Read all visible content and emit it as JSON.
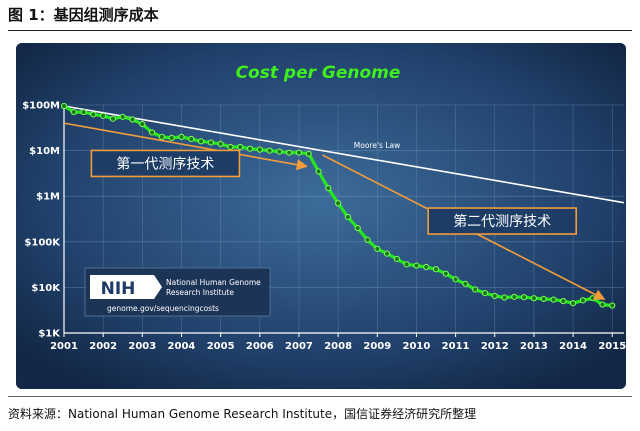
{
  "figure": {
    "title": "图 1：基因组测序成本",
    "source": "资料来源：National Human Genome Research Institute，国信证券经济研究所整理"
  },
  "logo": {
    "mark": "NIH",
    "name_line1": "National Human Genome",
    "name_line2": "Research Institute",
    "url": "genome.gov/sequencingcosts"
  },
  "chart_data": {
    "type": "line",
    "title": "Cost per Genome",
    "xlabel": "",
    "ylabel": "",
    "y_scale": "log",
    "ylim": [
      1000,
      100000000
    ],
    "xlim": [
      2001,
      2015.3
    ],
    "x_ticks": [
      "2001",
      "2002",
      "2003",
      "2004",
      "2005",
      "2006",
      "2007",
      "2008",
      "2009",
      "2010",
      "2011",
      "2012",
      "2013",
      "2014",
      "2015"
    ],
    "y_ticks": [
      {
        "value": 100000000,
        "label": "$100M"
      },
      {
        "value": 10000000,
        "label": "$10M"
      },
      {
        "value": 1000000,
        "label": "$1M"
      },
      {
        "value": 100000,
        "label": "$100K"
      },
      {
        "value": 10000,
        "label": "$10K"
      },
      {
        "value": 1000,
        "label": "$1K"
      }
    ],
    "grid": true,
    "series": [
      {
        "color": "#22e81c",
        "x": [
          2001.0,
          2001.25,
          2001.5,
          2001.75,
          2002.0,
          2002.25,
          2002.5,
          2002.75,
          2003.0,
          2003.25,
          2003.5,
          2003.75,
          2004.0,
          2004.25,
          2004.5,
          2004.75,
          2005.0,
          2005.25,
          2005.5,
          2005.75,
          2006.0,
          2006.25,
          2006.5,
          2006.75,
          2007.0,
          2007.25,
          2007.5,
          2007.75,
          2008.0,
          2008.25,
          2008.5,
          2008.75,
          2009.0,
          2009.25,
          2009.5,
          2009.75,
          2010.0,
          2010.25,
          2010.5,
          2010.75,
          2011.0,
          2011.25,
          2011.5,
          2011.75,
          2012.0,
          2012.25,
          2012.5,
          2012.75,
          2013.0,
          2013.25,
          2013.5,
          2013.75,
          2014.0,
          2014.25,
          2014.5,
          2014.75,
          2015.0
        ],
        "values": [
          95000000,
          70000000,
          70000000,
          62000000,
          58000000,
          50000000,
          55000000,
          48000000,
          38000000,
          25000000,
          20000000,
          19000000,
          20000000,
          18000000,
          16000000,
          15000000,
          14000000,
          12000000,
          12000000,
          11000000,
          10500000,
          10000000,
          9500000,
          9000000,
          9000000,
          8500000,
          3500000,
          1500000,
          700000,
          350000,
          200000,
          110000,
          70000,
          55000,
          42000,
          32000,
          30000,
          28000,
          25000,
          20000,
          15000,
          12000,
          9000,
          7500,
          6500,
          6000,
          6200,
          6100,
          5800,
          5600,
          5400,
          5000,
          4500,
          5200,
          5800,
          4200,
          4000
        ]
      },
      {
        "name": "Moore's Law",
        "color": "#ffffff",
        "x": [
          2001,
          2015.3
        ],
        "values": [
          95000000,
          720000
        ]
      }
    ],
    "annotations": [
      {
        "text": "第一代测序技术",
        "color": "#f39c3a",
        "arrow_from": [
          2001,
          40000000
        ],
        "arrow_to": [
          2007.2,
          4500000
        ]
      },
      {
        "text": "第二代测序技术",
        "color": "#f39c3a",
        "arrow_from": [
          2007.6,
          8000000
        ],
        "arrow_to": [
          2014.8,
          5500
        ]
      }
    ]
  }
}
